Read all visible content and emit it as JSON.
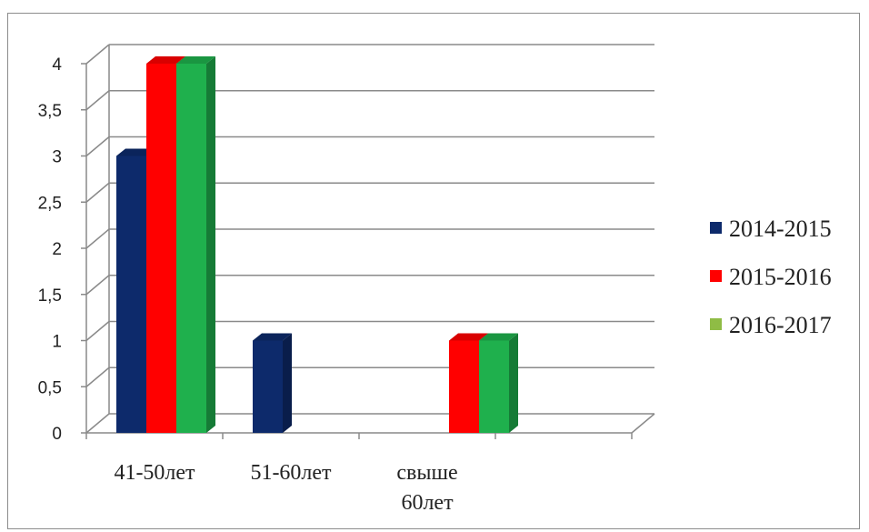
{
  "chart_data": {
    "type": "bar",
    "title": "",
    "xlabel": "",
    "ylabel": "",
    "categories": [
      "41-50лет",
      "51-60лет",
      "свыше 60лет"
    ],
    "category_lines": [
      [
        "41-50лет"
      ],
      [
        "51-60лет"
      ],
      [
        "свыше",
        "60лет"
      ]
    ],
    "series": [
      {
        "name": "2014-2015",
        "values": [
          3,
          1,
          0
        ],
        "color": "#0d2a6b"
      },
      {
        "name": "2015-2016",
        "values": [
          4,
          0,
          1
        ],
        "color": "#ff0000"
      },
      {
        "name": "2016-2017",
        "values": [
          4,
          0,
          1
        ],
        "color": "#1fb04d"
      }
    ],
    "y_ticks": [
      "0",
      "0,5",
      "1",
      "1,5",
      "2",
      "2,5",
      "3",
      "3,5",
      "4"
    ],
    "ylim": [
      0,
      4
    ],
    "grid": true,
    "legend_position": "right",
    "legend_swatch_colors": [
      "#0d2a6b",
      "#ff0000",
      "#8fbc45"
    ]
  }
}
